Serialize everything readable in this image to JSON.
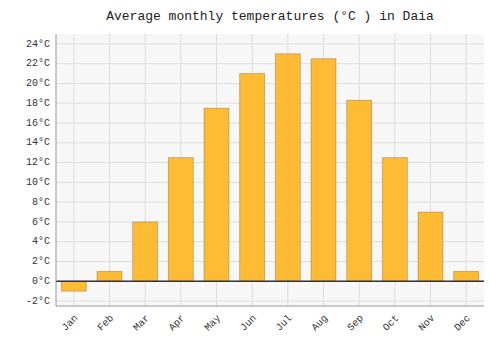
{
  "chart_data": {
    "type": "bar",
    "title": "Average monthly temperatures (°C ) in Daia",
    "categories": [
      "Jan",
      "Feb",
      "Mar",
      "Apr",
      "May",
      "Jun",
      "Jul",
      "Aug",
      "Sep",
      "Oct",
      "Nov",
      "Dec"
    ],
    "values": [
      -1.0,
      1.0,
      6.0,
      12.5,
      17.5,
      21.0,
      23.0,
      22.5,
      18.3,
      12.5,
      7.0,
      1.0
    ],
    "color": "#FFBB33",
    "ylim": [
      -2.5,
      25
    ],
    "yticks": [
      {
        "value": -2,
        "label": "-2°C"
      },
      {
        "value": 0,
        "label": "0°C"
      },
      {
        "value": 2,
        "label": "2°C"
      },
      {
        "value": 4,
        "label": "4°C"
      },
      {
        "value": 6,
        "label": "6°C"
      },
      {
        "value": 8,
        "label": "8°C"
      },
      {
        "value": 10,
        "label": "10°C"
      },
      {
        "value": 12,
        "label": "12°C"
      },
      {
        "value": 14,
        "label": "14°C"
      },
      {
        "value": 16,
        "label": "16°C"
      },
      {
        "value": 18,
        "label": "18°C"
      },
      {
        "value": 20,
        "label": "20°C"
      },
      {
        "value": 22,
        "label": "22°C"
      },
      {
        "value": 24,
        "label": "24°C"
      }
    ],
    "grid": true
  }
}
